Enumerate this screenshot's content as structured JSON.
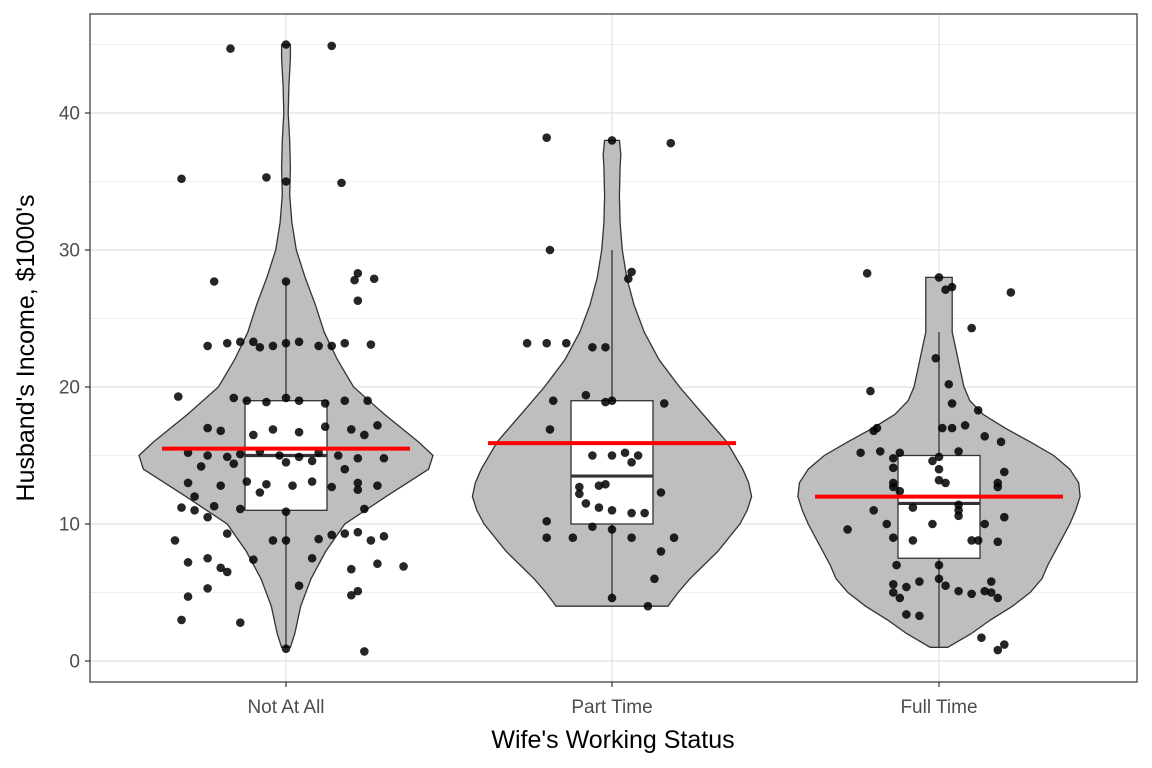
{
  "chart_data": {
    "type": "violin",
    "xlabel": "Wife's Working Status",
    "ylabel": "Husband's Income, $1000's",
    "ylim": [
      -1.5,
      46.5
    ],
    "yticks": [
      0,
      10,
      20,
      30,
      40
    ],
    "ytick_labels": [
      "0",
      "10",
      "20",
      "30",
      "40"
    ],
    "grid": true,
    "colors": {
      "violin_fill": "#bebebe",
      "violin_stroke": "#333333",
      "mean_line": "#ff0000",
      "point": "#000000",
      "box_fill": "#ffffff"
    },
    "categories": [
      "Not At All",
      "Part Time",
      "Full Time"
    ],
    "groups": [
      {
        "name": "Not At All",
        "mean": 15.5,
        "box": {
          "min": 1,
          "q1": 11,
          "median": 15,
          "q3": 19,
          "max": 27.7
        },
        "violin": [
          [
            1,
            0.03
          ],
          [
            2,
            0.06
          ],
          [
            4,
            0.1
          ],
          [
            6,
            0.17
          ],
          [
            8,
            0.27
          ],
          [
            10,
            0.4
          ],
          [
            12,
            0.68
          ],
          [
            14,
            0.97
          ],
          [
            15,
            1.0
          ],
          [
            16,
            0.9
          ],
          [
            18,
            0.67
          ],
          [
            20,
            0.46
          ],
          [
            22,
            0.35
          ],
          [
            24,
            0.26
          ],
          [
            26,
            0.2
          ],
          [
            28,
            0.13
          ],
          [
            30,
            0.07
          ],
          [
            32,
            0.04
          ],
          [
            34,
            0.025
          ],
          [
            36,
            0.03
          ],
          [
            38,
            0.025
          ],
          [
            40,
            0.015
          ],
          [
            42,
            0.02
          ],
          [
            44,
            0.03
          ],
          [
            45,
            0.03
          ]
        ],
        "points": [
          [
            -0.17,
            44.7
          ],
          [
            0.0,
            45.0
          ],
          [
            0.14,
            44.9
          ],
          [
            -0.32,
            35.2
          ],
          [
            -0.06,
            35.3
          ],
          [
            0.0,
            35.0
          ],
          [
            0.17,
            34.9
          ],
          [
            -0.22,
            27.7
          ],
          [
            0.0,
            27.7
          ],
          [
            0.22,
            28.3
          ],
          [
            0.27,
            27.9
          ],
          [
            0.21,
            27.8
          ],
          [
            0.22,
            26.3
          ],
          [
            -0.24,
            23.0
          ],
          [
            -0.18,
            23.2
          ],
          [
            -0.14,
            23.3
          ],
          [
            -0.1,
            23.3
          ],
          [
            -0.04,
            23.0
          ],
          [
            -0.08,
            22.9
          ],
          [
            0.0,
            23.2
          ],
          [
            0.04,
            23.3
          ],
          [
            0.1,
            23.0
          ],
          [
            0.18,
            23.2
          ],
          [
            0.14,
            23.0
          ],
          [
            0.26,
            23.1
          ],
          [
            -0.33,
            19.3
          ],
          [
            -0.16,
            19.2
          ],
          [
            -0.12,
            19.0
          ],
          [
            -0.06,
            18.9
          ],
          [
            0.0,
            19.2
          ],
          [
            0.04,
            19.0
          ],
          [
            0.12,
            18.8
          ],
          [
            0.18,
            19.0
          ],
          [
            0.25,
            19.0
          ],
          [
            -0.24,
            17.0
          ],
          [
            -0.2,
            16.8
          ],
          [
            -0.1,
            16.5
          ],
          [
            -0.04,
            16.9
          ],
          [
            0.04,
            16.7
          ],
          [
            0.12,
            17.1
          ],
          [
            0.2,
            16.9
          ],
          [
            0.28,
            17.2
          ],
          [
            0.24,
            16.5
          ],
          [
            -0.3,
            15.2
          ],
          [
            -0.24,
            15.0
          ],
          [
            -0.18,
            14.9
          ],
          [
            -0.14,
            15.1
          ],
          [
            -0.08,
            15.3
          ],
          [
            -0.02,
            15.0
          ],
          [
            0.04,
            14.9
          ],
          [
            0.1,
            15.2
          ],
          [
            0.16,
            15.0
          ],
          [
            0.22,
            14.8
          ],
          [
            0.3,
            14.8
          ],
          [
            -0.26,
            14.2
          ],
          [
            -0.16,
            14.4
          ],
          [
            0.0,
            14.5
          ],
          [
            0.08,
            14.6
          ],
          [
            0.18,
            14.0
          ],
          [
            -0.3,
            13.0
          ],
          [
            -0.2,
            12.8
          ],
          [
            -0.12,
            13.1
          ],
          [
            -0.06,
            12.9
          ],
          [
            0.02,
            12.8
          ],
          [
            0.08,
            13.1
          ],
          [
            0.14,
            12.7
          ],
          [
            0.22,
            13.0
          ],
          [
            0.28,
            12.8
          ],
          [
            -0.28,
            12.0
          ],
          [
            -0.08,
            12.3
          ],
          [
            0.22,
            12.5
          ],
          [
            -0.32,
            11.2
          ],
          [
            -0.28,
            11.0
          ],
          [
            -0.22,
            11.3
          ],
          [
            -0.14,
            11.1
          ],
          [
            -0.24,
            10.5
          ],
          [
            0.0,
            10.9
          ],
          [
            0.24,
            11.1
          ],
          [
            -0.18,
            9.3
          ],
          [
            0.14,
            9.2
          ],
          [
            0.18,
            9.3
          ],
          [
            0.22,
            9.4
          ],
          [
            -0.34,
            8.8
          ],
          [
            -0.04,
            8.8
          ],
          [
            0.0,
            8.8
          ],
          [
            0.1,
            8.9
          ],
          [
            0.26,
            8.8
          ],
          [
            0.3,
            9.1
          ],
          [
            -0.24,
            7.5
          ],
          [
            -0.1,
            7.4
          ],
          [
            0.08,
            7.5
          ],
          [
            -0.3,
            7.2
          ],
          [
            -0.2,
            6.8
          ],
          [
            0.28,
            7.1
          ],
          [
            0.36,
            6.9
          ],
          [
            -0.18,
            6.5
          ],
          [
            0.2,
            6.7
          ],
          [
            -0.24,
            5.3
          ],
          [
            0.04,
            5.5
          ],
          [
            0.22,
            5.1
          ],
          [
            -0.3,
            4.7
          ],
          [
            0.2,
            4.8
          ],
          [
            -0.32,
            3.0
          ],
          [
            -0.14,
            2.8
          ],
          [
            0.0,
            0.9
          ],
          [
            0.24,
            0.7
          ]
        ]
      },
      {
        "name": "Part Time",
        "mean": 15.9,
        "box": {
          "min": 4.6,
          "q1": 10,
          "median": 13.5,
          "q3": 19,
          "max": 30
        },
        "violin": [
          [
            4,
            0.38
          ],
          [
            5,
            0.45
          ],
          [
            6,
            0.53
          ],
          [
            8,
            0.72
          ],
          [
            10,
            0.87
          ],
          [
            11,
            0.92
          ],
          [
            12,
            0.95
          ],
          [
            13,
            0.93
          ],
          [
            14,
            0.89
          ],
          [
            16,
            0.78
          ],
          [
            18,
            0.62
          ],
          [
            20,
            0.46
          ],
          [
            22,
            0.32
          ],
          [
            24,
            0.22
          ],
          [
            26,
            0.15
          ],
          [
            28,
            0.1
          ],
          [
            30,
            0.07
          ],
          [
            32,
            0.055
          ],
          [
            34,
            0.05
          ],
          [
            36,
            0.055
          ],
          [
            37,
            0.06
          ],
          [
            38,
            0.05
          ]
        ],
        "points": [
          [
            -0.2,
            38.2
          ],
          [
            0.0,
            38.0
          ],
          [
            0.18,
            37.8
          ],
          [
            -0.19,
            30.0
          ],
          [
            0.06,
            28.4
          ],
          [
            0.05,
            27.9
          ],
          [
            -0.26,
            23.2
          ],
          [
            -0.2,
            23.2
          ],
          [
            -0.14,
            23.2
          ],
          [
            -0.06,
            22.9
          ],
          [
            -0.02,
            22.9
          ],
          [
            -0.18,
            19.0
          ],
          [
            -0.08,
            19.4
          ],
          [
            -0.02,
            18.9
          ],
          [
            0.0,
            19.0
          ],
          [
            0.16,
            18.8
          ],
          [
            -0.19,
            16.9
          ],
          [
            -0.06,
            15.0
          ],
          [
            0.0,
            15.0
          ],
          [
            0.04,
            15.2
          ],
          [
            0.08,
            15.0
          ],
          [
            0.06,
            14.5
          ],
          [
            -0.1,
            12.7
          ],
          [
            -0.04,
            12.8
          ],
          [
            -0.02,
            12.9
          ],
          [
            -0.1,
            12.2
          ],
          [
            0.15,
            12.3
          ],
          [
            -0.08,
            11.5
          ],
          [
            -0.04,
            11.2
          ],
          [
            0.0,
            11.0
          ],
          [
            0.06,
            10.8
          ],
          [
            0.1,
            10.8
          ],
          [
            -0.2,
            10.2
          ],
          [
            -0.06,
            9.8
          ],
          [
            0.0,
            9.6
          ],
          [
            -0.2,
            9.0
          ],
          [
            -0.12,
            9.0
          ],
          [
            0.06,
            9.0
          ],
          [
            0.15,
            8.0
          ],
          [
            0.19,
            9.0
          ],
          [
            0.13,
            6.0
          ],
          [
            0.0,
            4.6
          ],
          [
            0.11,
            4.0
          ]
        ]
      },
      {
        "name": "Full Time",
        "mean": 12.0,
        "box": {
          "min": 1,
          "q1": 7.5,
          "median": 11.5,
          "q3": 15,
          "max": 24
        },
        "violin": [
          [
            1,
            0.06
          ],
          [
            2,
            0.22
          ],
          [
            3,
            0.35
          ],
          [
            4,
            0.5
          ],
          [
            5,
            0.62
          ],
          [
            6,
            0.7
          ],
          [
            7,
            0.74
          ],
          [
            8,
            0.79
          ],
          [
            9,
            0.84
          ],
          [
            10,
            0.89
          ],
          [
            11,
            0.93
          ],
          [
            12,
            0.96
          ],
          [
            13,
            0.95
          ],
          [
            14,
            0.89
          ],
          [
            15,
            0.78
          ],
          [
            16,
            0.62
          ],
          [
            17,
            0.45
          ],
          [
            18,
            0.3
          ],
          [
            19,
            0.21
          ],
          [
            20,
            0.17
          ],
          [
            21,
            0.15
          ],
          [
            22,
            0.13
          ],
          [
            23,
            0.11
          ],
          [
            24,
            0.09
          ],
          [
            25,
            0.09
          ],
          [
            26,
            0.09
          ],
          [
            27,
            0.09
          ],
          [
            28,
            0.09
          ]
        ],
        "points": [
          [
            -0.22,
            28.3
          ],
          [
            0.0,
            28.0
          ],
          [
            0.04,
            27.3
          ],
          [
            0.02,
            27.1
          ],
          [
            0.22,
            26.9
          ],
          [
            0.1,
            24.3
          ],
          [
            -0.01,
            22.1
          ],
          [
            0.03,
            20.2
          ],
          [
            -0.21,
            19.7
          ],
          [
            0.04,
            18.8
          ],
          [
            0.12,
            18.3
          ],
          [
            -0.19,
            17.0
          ],
          [
            0.01,
            17.0
          ],
          [
            0.04,
            17.0
          ],
          [
            0.08,
            17.2
          ],
          [
            0.14,
            16.4
          ],
          [
            -0.2,
            16.8
          ],
          [
            0.19,
            16.0
          ],
          [
            0.06,
            15.3
          ],
          [
            -0.24,
            15.2
          ],
          [
            -0.18,
            15.3
          ],
          [
            -0.12,
            15.2
          ],
          [
            -0.14,
            14.8
          ],
          [
            -0.02,
            14.6
          ],
          [
            0.0,
            14.9
          ],
          [
            -0.14,
            14.1
          ],
          [
            -0.14,
            13.0
          ],
          [
            -0.14,
            12.7
          ],
          [
            0.0,
            14.0
          ],
          [
            0.0,
            13.2
          ],
          [
            0.02,
            13.0
          ],
          [
            -0.12,
            12.4
          ],
          [
            0.18,
            13.0
          ],
          [
            0.18,
            12.7
          ],
          [
            0.2,
            13.8
          ],
          [
            0.06,
            11.4
          ],
          [
            -0.08,
            11.2
          ],
          [
            0.06,
            11.0
          ],
          [
            -0.2,
            11.0
          ],
          [
            -0.28,
            9.6
          ],
          [
            -0.16,
            10.0
          ],
          [
            -0.14,
            9.0
          ],
          [
            -0.02,
            10.0
          ],
          [
            -0.08,
            8.8
          ],
          [
            0.06,
            10.6
          ],
          [
            0.14,
            10.0
          ],
          [
            0.2,
            10.5
          ],
          [
            0.1,
            8.8
          ],
          [
            0.12,
            8.8
          ],
          [
            0.18,
            8.7
          ],
          [
            -0.13,
            7.0
          ],
          [
            0.0,
            7.0
          ],
          [
            -0.14,
            5.6
          ],
          [
            -0.1,
            5.4
          ],
          [
            -0.06,
            5.8
          ],
          [
            0.0,
            6.0
          ],
          [
            0.02,
            5.5
          ],
          [
            0.06,
            5.1
          ],
          [
            0.14,
            5.1
          ],
          [
            0.16,
            5.8
          ],
          [
            0.16,
            5.0
          ],
          [
            -0.14,
            5.0
          ],
          [
            -0.12,
            4.6
          ],
          [
            -0.1,
            3.4
          ],
          [
            -0.06,
            3.3
          ],
          [
            0.1,
            4.9
          ],
          [
            0.18,
            4.6
          ],
          [
            0.13,
            1.7
          ],
          [
            0.2,
            1.2
          ],
          [
            0.18,
            0.8
          ]
        ]
      }
    ]
  }
}
